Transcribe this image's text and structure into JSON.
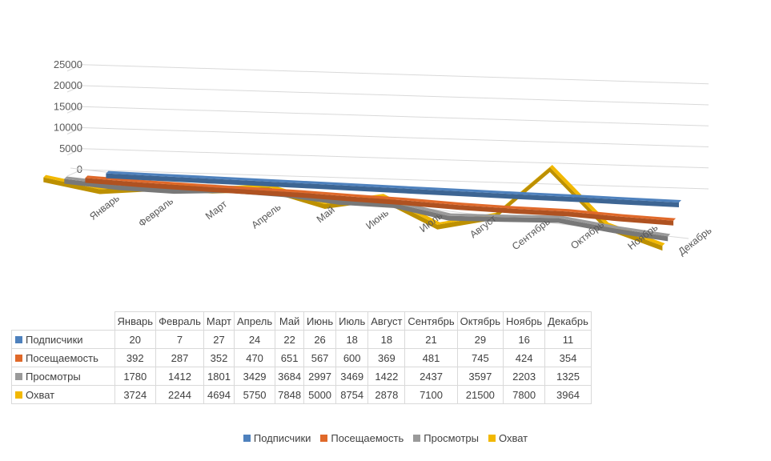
{
  "chart_data": {
    "type": "line",
    "style": "3d-line",
    "categories": [
      "Январь",
      "Февраль",
      "Март",
      "Апрель",
      "Май",
      "Июнь",
      "Июль",
      "Август",
      "Сентябрь",
      "Октябрь",
      "Ноябрь",
      "Декабрь"
    ],
    "series": [
      {
        "name": "Подписчики",
        "color": "#4e81bd",
        "values": [
          20,
          7,
          27,
          24,
          22,
          26,
          18,
          18,
          21,
          29,
          16,
          11
        ]
      },
      {
        "name": "Посещаемость",
        "color": "#e0692a",
        "values": [
          392,
          287,
          352,
          470,
          651,
          567,
          600,
          369,
          481,
          745,
          424,
          354
        ]
      },
      {
        "name": "Просмотры",
        "color": "#9a9a9a",
        "values": [
          1780,
          1412,
          1801,
          3429,
          3684,
          2997,
          3469,
          1422,
          2437,
          3597,
          2203,
          1325
        ]
      },
      {
        "name": "Охват",
        "color": "#f2b800",
        "values": [
          3724,
          2244,
          4694,
          5750,
          7848,
          5000,
          8754,
          2878,
          7100,
          21500,
          7800,
          3964
        ]
      }
    ],
    "y_ticks": [
      "0",
      "5000",
      "10000",
      "15000",
      "20000",
      "25000"
    ],
    "ylim": [
      0,
      25000
    ],
    "grid": true,
    "legend": "bottom",
    "data_table": true
  }
}
